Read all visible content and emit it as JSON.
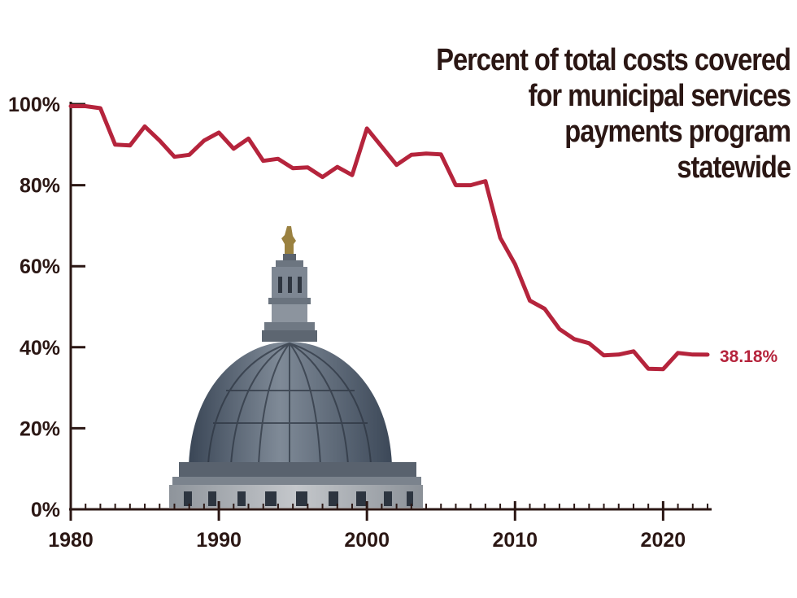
{
  "colors": {
    "line": "#b5243c",
    "axis": "#2b1714",
    "text": "#2b1714"
  },
  "chart_data": {
    "type": "line",
    "title": "",
    "title_lines": [
      "Percent of total costs covered",
      "for municipal services",
      "payments program",
      "statewide"
    ],
    "xlabel": "",
    "ylabel": "",
    "xlim": [
      1980,
      2023
    ],
    "ylim": [
      0,
      100
    ],
    "x_ticks": [
      "1980",
      "1990",
      "2000",
      "2010",
      "2020"
    ],
    "y_ticks": [
      "0%",
      "20%",
      "40%",
      "60%",
      "80%",
      "100%"
    ],
    "grid": false,
    "legend": "none",
    "end_label": "38.18%",
    "series": [
      {
        "x": [
          1980,
          1981,
          1982,
          1983,
          1984,
          1985,
          1986,
          1987,
          1988,
          1989,
          1990,
          1991,
          1992,
          1993,
          1994,
          1995,
          1996,
          1997,
          1998,
          1999,
          2000,
          2001,
          2002,
          2003,
          2004,
          2005,
          2006,
          2007,
          2008,
          2009,
          2010,
          2011,
          2012,
          2013,
          2014,
          2015,
          2016,
          2017,
          2018,
          2019,
          2020,
          2021,
          2022,
          2023
        ],
        "values": [
          99.5,
          99.5,
          99,
          90,
          89.8,
          94.5,
          91,
          87,
          87.5,
          91,
          93,
          89,
          91.5,
          86,
          86.5,
          84.2,
          84.4,
          82,
          84.5,
          82.5,
          94,
          89.5,
          85,
          87.5,
          87.8,
          87.6,
          80,
          80,
          81,
          67,
          60.5,
          51.5,
          49.5,
          44.5,
          42,
          41,
          38,
          38.2,
          39,
          34.7,
          34.6,
          38.6,
          38.2,
          38.18
        ]
      }
    ]
  }
}
